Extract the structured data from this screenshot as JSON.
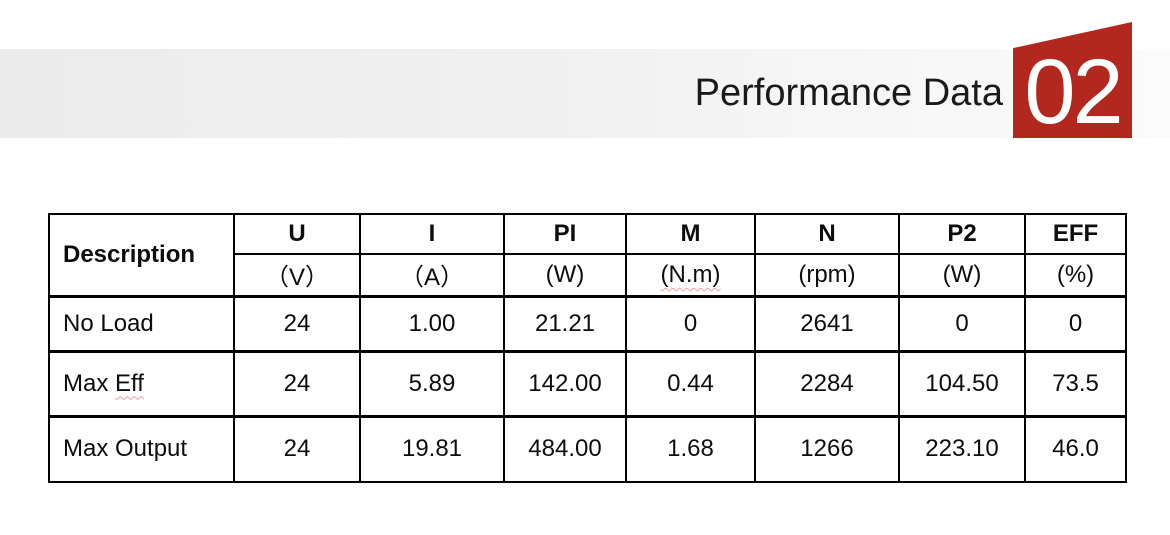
{
  "header": {
    "title": "Performance Data",
    "badge_number": "02"
  },
  "colors": {
    "badge_red": "#b3281e",
    "band_gray_left": "#ececec",
    "band_gray_right": "#fbfbfb",
    "spellcheck_underline": "#f19c96",
    "table_border": "#000000"
  },
  "table": {
    "description_header": "Description",
    "columns": [
      {
        "name": "U",
        "unit": "（V）",
        "unit_wavy": false
      },
      {
        "name": "I",
        "unit": "（A）",
        "unit_wavy": false
      },
      {
        "name": "PI",
        "unit": "(W)",
        "unit_wavy": false
      },
      {
        "name": "M",
        "unit": "(N.m)",
        "unit_wavy": true
      },
      {
        "name": "N",
        "unit": "(rpm)",
        "unit_wavy": false
      },
      {
        "name": "P2",
        "unit": "(W)",
        "unit_wavy": false
      },
      {
        "name": "EFF",
        "unit": "(%)",
        "unit_wavy": false
      }
    ],
    "rows": [
      {
        "label": [
          {
            "text": "No Load",
            "wavy": false
          }
        ],
        "values": [
          "24",
          "1.00",
          "21.21",
          "0",
          "2641",
          "0",
          "0"
        ]
      },
      {
        "label": [
          {
            "text": "Max ",
            "wavy": false
          },
          {
            "text": "Eff",
            "wavy": true
          }
        ],
        "values": [
          "24",
          "5.89",
          "142.00",
          "0.44",
          "2284",
          "104.50",
          "73.5"
        ]
      },
      {
        "label": [
          {
            "text": "Max Output",
            "wavy": false
          }
        ],
        "values": [
          "24",
          "19.81",
          "484.00",
          "1.68",
          "1266",
          "223.10",
          "46.0"
        ]
      }
    ]
  }
}
